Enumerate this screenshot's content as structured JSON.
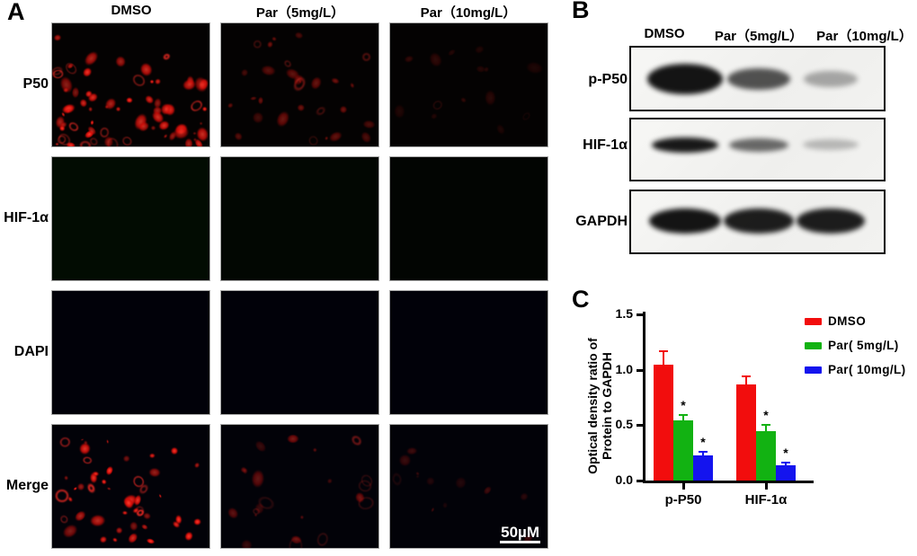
{
  "panels": {
    "A": {
      "label": "A",
      "column_headers": [
        "DMSO",
        "Par（5mg/L）",
        "Par（10mg/L）"
      ],
      "rows": [
        {
          "label": "P50",
          "channel": "red-speckle",
          "intensity": [
            1.0,
            0.42,
            0.2
          ]
        },
        {
          "label": "HIF-1α",
          "channel": "green-diffuse",
          "intensity": [
            1.0,
            0.5,
            0.26
          ]
        },
        {
          "label": "DAPI",
          "channel": "blue-nuclei",
          "intensity": [
            1.0,
            0.95,
            0.88
          ]
        },
        {
          "label": "Merge",
          "channel": "merge",
          "intensity": [
            1.0,
            0.45,
            0.25
          ]
        }
      ],
      "scale_bar_label": "50µM",
      "channel_colors": {
        "red": "#ff2a22",
        "green": "#2fb32f",
        "blue": "#2b46ff"
      }
    },
    "B": {
      "label": "B",
      "column_headers": [
        "DMSO",
        "Par（5mg/L）",
        "Par（10mg/L）"
      ],
      "blots": [
        {
          "label": "p-P50",
          "band_intensities": [
            0.97,
            0.7,
            0.33
          ]
        },
        {
          "label": "HIF-1α",
          "band_intensities": [
            0.95,
            0.6,
            0.25
          ]
        },
        {
          "label": "GAPDH",
          "band_intensities": [
            0.97,
            0.93,
            0.93
          ]
        }
      ]
    },
    "C": {
      "label": "C"
    }
  },
  "chart_data": {
    "type": "bar",
    "title": "",
    "ylabel": "Optical density ratio of Protein to GAPDH",
    "ylabel_line1": "Optical density ratio of",
    "ylabel_line2": "Protein to GAPDH",
    "categories": [
      "p-P50",
      "HIF-1α"
    ],
    "series": [
      {
        "name": "DMSO",
        "color": "#f20d0d",
        "values": [
          1.05,
          0.87
        ],
        "errors": [
          0.12,
          0.07
        ],
        "significance": [
          "",
          ""
        ]
      },
      {
        "name": "Par( 5mg/L)",
        "color": "#12b212",
        "values": [
          0.54,
          0.45
        ],
        "errors": [
          0.05,
          0.05
        ],
        "significance": [
          "*",
          "*"
        ]
      },
      {
        "name": "Par( 10mg/L)",
        "color": "#1414ee",
        "values": [
          0.23,
          0.14
        ],
        "errors": [
          0.03,
          0.02
        ],
        "significance": [
          "*",
          "*"
        ]
      }
    ],
    "ylim": [
      0,
      1.5
    ],
    "yticks": [
      "0.0",
      "0.5",
      "1.0",
      "1.5"
    ],
    "legend_position": "top-right",
    "grid": false
  }
}
